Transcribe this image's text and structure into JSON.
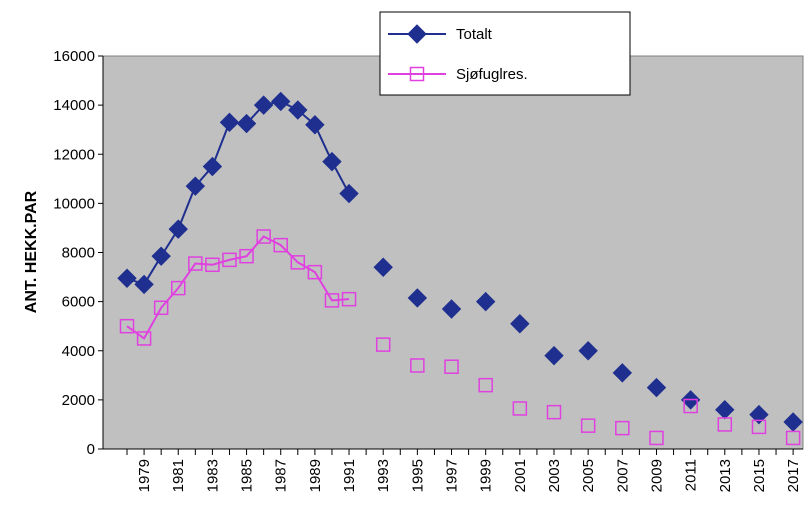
{
  "chart_data": {
    "type": "line",
    "y_label": "ANT. HEKK.PAR",
    "categories": [
      null,
      "1979",
      null,
      "1981",
      null,
      "1983",
      null,
      "1985",
      null,
      "1987",
      null,
      "1989",
      null,
      "1991",
      null,
      "1993",
      null,
      "1995",
      null,
      "1997",
      null,
      "1999",
      null,
      "2001",
      null,
      "2003",
      null,
      "2005",
      null,
      "2007",
      null,
      "2009",
      null,
      "2011",
      null,
      "2013",
      null,
      "2015",
      null,
      "2017"
    ],
    "series": [
      {
        "name": "Totalt",
        "color": "#1f2f8f",
        "marker": "diamond",
        "values": [
          6950,
          6700,
          7850,
          8950,
          10700,
          11500,
          13300,
          13250,
          14000,
          14150,
          13800,
          13200,
          11700,
          10400,
          null,
          7400,
          null,
          6150,
          null,
          5700,
          null,
          6000,
          null,
          5100,
          null,
          3800,
          null,
          4000,
          null,
          3100,
          null,
          2500,
          null,
          2000,
          null,
          1600,
          null,
          1400,
          null,
          1100
        ]
      },
      {
        "name": "Sjøfuglres.",
        "color": "#e040e0",
        "marker": "square",
        "values": [
          5000,
          4500,
          5750,
          6550,
          7550,
          7500,
          7700,
          7850,
          8650,
          8300,
          7600,
          7200,
          6050,
          6100,
          null,
          4250,
          null,
          3400,
          null,
          3350,
          null,
          2600,
          null,
          1650,
          null,
          1500,
          null,
          950,
          null,
          850,
          null,
          450,
          null,
          1750,
          null,
          1000,
          null,
          900,
          null,
          450
        ]
      }
    ],
    "ylim": [
      0,
      16000
    ],
    "yticks": [
      0,
      2000,
      4000,
      6000,
      8000,
      10000,
      12000,
      14000,
      16000
    ]
  }
}
